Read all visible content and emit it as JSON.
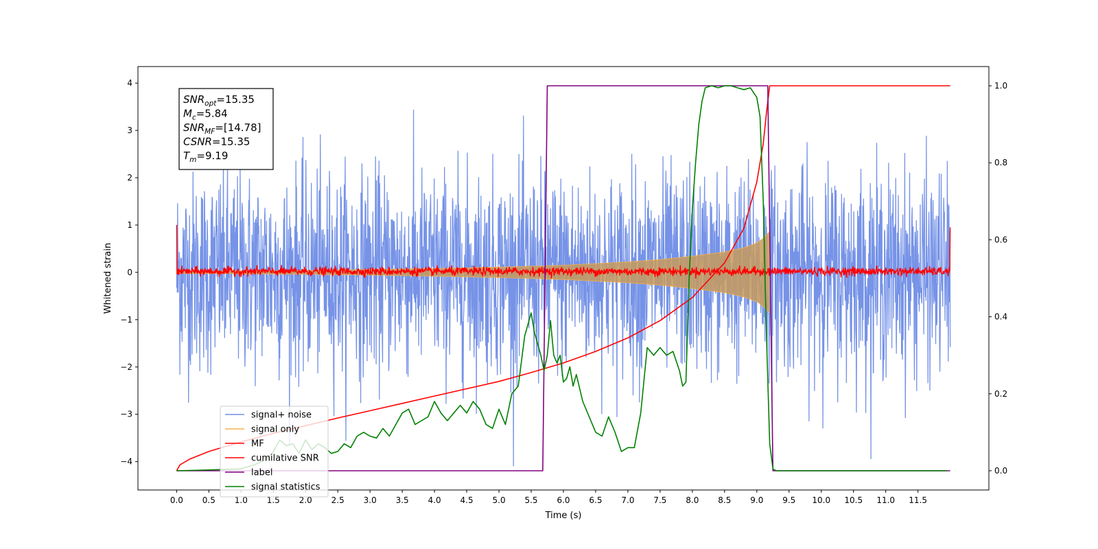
{
  "chart_data": {
    "type": "line",
    "xlabel": "Time (s)",
    "ylabel_left": "Whitened strain",
    "ylabel_right": "",
    "xlim": [
      -0.6,
      12.6
    ],
    "ylim_left": [
      -4.6,
      4.35
    ],
    "ylim_right": [
      -0.05,
      1.05
    ],
    "x_ticks": [
      0.0,
      0.5,
      1.0,
      1.5,
      2.0,
      2.5,
      3.0,
      3.5,
      4.0,
      4.5,
      5.0,
      5.5,
      6.0,
      6.5,
      7.0,
      7.5,
      8.0,
      8.5,
      9.0,
      9.5,
      10.0,
      10.5,
      11.0,
      11.5
    ],
    "x_tick_labels": [
      "0.0",
      "0.5",
      "1.0",
      "1.5",
      "2.0",
      "2.5",
      "3.0",
      "3.5",
      "4.0",
      "4.5",
      "5.0",
      "5.5",
      "6.0",
      "6.5",
      "7.0",
      "7.5",
      "8.0",
      "8.5",
      "9.0",
      "9.5",
      "10.0",
      "10.5",
      "11.0",
      "11.5"
    ],
    "y_left_ticks": [
      -4,
      -3,
      -2,
      -1,
      0,
      1,
      2,
      3,
      4
    ],
    "y_left_tick_labels": [
      "−4",
      "−3",
      "−2",
      "−1",
      "0",
      "1",
      "2",
      "3",
      "4"
    ],
    "y_right_ticks": [
      0.0,
      0.2,
      0.4,
      0.6,
      0.8,
      1.0
    ],
    "y_right_tick_labels": [
      "0.0",
      "0.2",
      "0.4",
      "0.6",
      "0.8",
      "1.0"
    ],
    "grid": false,
    "legend_position": "lower-left",
    "series": [
      {
        "name": "signal+ noise",
        "axis": "left",
        "color": "#6f8de6",
        "kind": "noise",
        "x_range": [
          0.0,
          12.0
        ],
        "typical_range": [
          -2.4,
          2.4
        ],
        "peak_range": [
          -4.1,
          3.95
        ]
      },
      {
        "name": "signal only",
        "axis": "left",
        "color": "#f5b04a",
        "kind": "chirp-envelope",
        "x": [
          0.0,
          1.0,
          2.0,
          3.0,
          4.0,
          5.0,
          6.0,
          7.0,
          7.5,
          8.0,
          8.5,
          8.8,
          9.0,
          9.1,
          9.19
        ],
        "amplitude": [
          0.02,
          0.03,
          0.04,
          0.06,
          0.08,
          0.11,
          0.15,
          0.22,
          0.27,
          0.34,
          0.43,
          0.52,
          0.62,
          0.72,
          0.85
        ]
      },
      {
        "name": "MF",
        "axis": "left",
        "color": "#ff0000",
        "kind": "noise-band",
        "x_range": [
          0.0,
          12.0
        ],
        "typical_range": [
          -0.08,
          0.12
        ],
        "edge_values": {
          "start": 1.0,
          "end": 0.95
        }
      },
      {
        "name": "cumilative SNR",
        "axis": "right",
        "color": "#ff0000",
        "x": [
          0.0,
          0.05,
          0.2,
          0.5,
          1.0,
          1.5,
          2.0,
          2.5,
          3.0,
          3.5,
          4.0,
          4.5,
          5.0,
          5.5,
          6.0,
          6.5,
          7.0,
          7.5,
          8.0,
          8.5,
          8.8,
          9.0,
          9.1,
          9.15,
          9.2,
          10.0,
          11.0,
          12.0
        ],
        "values": [
          0.0,
          0.015,
          0.03,
          0.05,
          0.075,
          0.097,
          0.117,
          0.137,
          0.156,
          0.175,
          0.194,
          0.213,
          0.232,
          0.255,
          0.28,
          0.31,
          0.345,
          0.39,
          0.45,
          0.54,
          0.63,
          0.75,
          0.85,
          0.93,
          1.0,
          1.0,
          1.0,
          1.0
        ]
      },
      {
        "name": "label",
        "axis": "right",
        "color": "#800080",
        "x": [
          0.0,
          5.68,
          5.75,
          9.17,
          9.25,
          12.0
        ],
        "values": [
          0.0,
          0.0,
          1.0,
          1.0,
          0.0,
          0.0
        ]
      },
      {
        "name": "signal statistics",
        "axis": "right",
        "color": "#008000",
        "x": [
          0.0,
          0.5,
          1.0,
          1.2,
          1.4,
          1.5,
          1.6,
          1.7,
          1.8,
          1.9,
          2.0,
          2.1,
          2.2,
          2.3,
          2.4,
          2.5,
          2.6,
          2.7,
          2.8,
          2.9,
          3.0,
          3.1,
          3.2,
          3.3,
          3.4,
          3.5,
          3.6,
          3.7,
          3.8,
          3.9,
          4.0,
          4.1,
          4.2,
          4.3,
          4.4,
          4.5,
          4.6,
          4.7,
          4.8,
          4.9,
          5.0,
          5.1,
          5.2,
          5.3,
          5.4,
          5.45,
          5.5,
          5.55,
          5.6,
          5.65,
          5.7,
          5.75,
          5.8,
          5.85,
          5.9,
          5.95,
          6.0,
          6.05,
          6.1,
          6.15,
          6.2,
          6.3,
          6.4,
          6.5,
          6.6,
          6.7,
          6.8,
          6.9,
          7.0,
          7.1,
          7.2,
          7.3,
          7.4,
          7.5,
          7.6,
          7.7,
          7.8,
          7.85,
          7.9,
          7.95,
          8.0,
          8.05,
          8.1,
          8.15,
          8.2,
          8.3,
          8.4,
          8.5,
          8.6,
          8.7,
          8.8,
          8.9,
          9.0,
          9.05,
          9.1,
          9.15,
          9.2,
          9.25,
          9.3,
          9.4,
          10.0,
          11.0,
          11.95
        ],
        "values": [
          0.0,
          0.002,
          0.005,
          0.015,
          0.03,
          0.05,
          0.08,
          0.065,
          0.07,
          0.045,
          0.08,
          0.055,
          0.07,
          0.06,
          0.045,
          0.05,
          0.07,
          0.06,
          0.09,
          0.1,
          0.09,
          0.085,
          0.11,
          0.09,
          0.12,
          0.15,
          0.16,
          0.12,
          0.13,
          0.14,
          0.18,
          0.15,
          0.13,
          0.15,
          0.17,
          0.15,
          0.18,
          0.16,
          0.12,
          0.11,
          0.16,
          0.12,
          0.2,
          0.22,
          0.35,
          0.38,
          0.41,
          0.36,
          0.33,
          0.3,
          0.26,
          0.3,
          0.39,
          0.3,
          0.28,
          0.3,
          0.23,
          0.24,
          0.27,
          0.22,
          0.25,
          0.18,
          0.14,
          0.1,
          0.09,
          0.14,
          0.1,
          0.05,
          0.06,
          0.06,
          0.15,
          0.32,
          0.3,
          0.32,
          0.3,
          0.31,
          0.26,
          0.22,
          0.23,
          0.5,
          0.68,
          0.8,
          0.9,
          0.96,
          0.995,
          1.0,
          0.995,
          1.0,
          1.0,
          0.995,
          0.99,
          0.995,
          0.97,
          0.92,
          0.7,
          0.35,
          0.07,
          0.005,
          0.0,
          0.0,
          0.0,
          0.0,
          0.0
        ]
      }
    ],
    "annotation": {
      "lines": [
        {
          "base": "SNR",
          "sub": "opt",
          "value": "=15.35"
        },
        {
          "base": "M",
          "sub": "c",
          "value": "=5.84"
        },
        {
          "base": "SNR",
          "sub": "MF",
          "value": "=[14.78]"
        },
        {
          "base": "CSNR",
          "sub": "",
          "value": "=15.35"
        },
        {
          "base": "T",
          "sub": "m",
          "value": "=9.19"
        }
      ]
    }
  }
}
